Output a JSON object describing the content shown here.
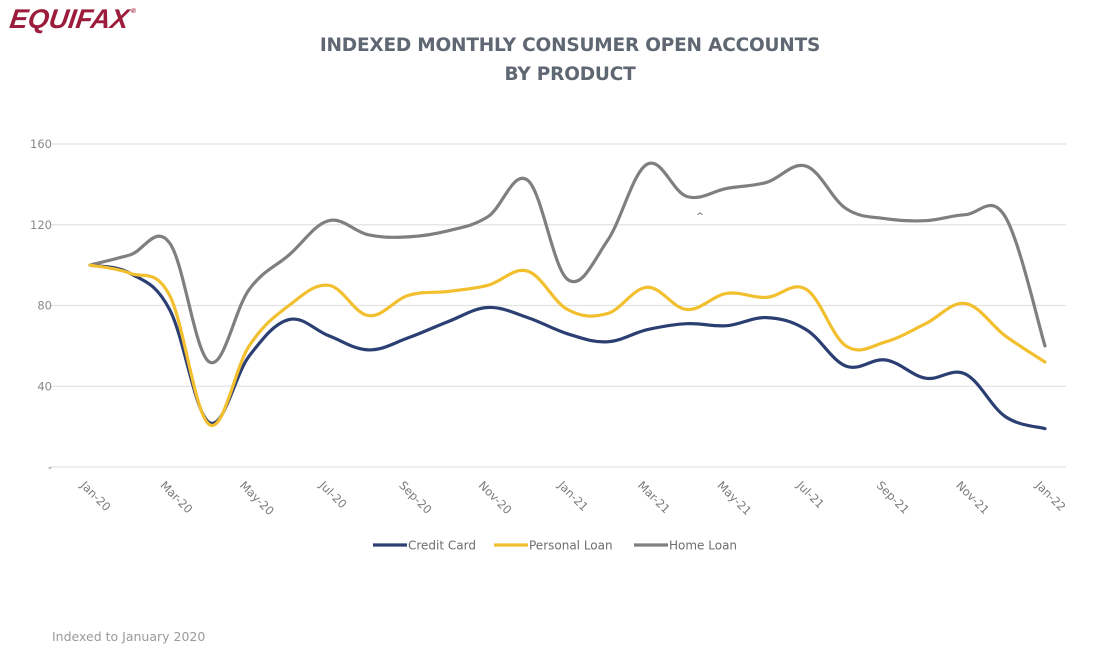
{
  "brand": {
    "logo_text": "EQUIFAX",
    "logo_mark": "®",
    "color": "#9c1c3c"
  },
  "footnote": "Indexed to January 2020",
  "chart_data": {
    "type": "line",
    "title_lines": [
      "INDEXED MONTHLY CONSUMER OPEN ACCOUNTS",
      "BY PRODUCT"
    ],
    "xlabel": "",
    "ylabel": "",
    "ylim": [
      0,
      160
    ],
    "yticks": [
      0,
      40,
      80,
      120,
      160
    ],
    "ytick_labels": [
      "-",
      "40",
      "80",
      "120",
      "160"
    ],
    "grid": true,
    "legend_position": "bottom",
    "x": [
      "Jan-20",
      "Feb-20",
      "Mar-20",
      "Apr-20",
      "May-20",
      "Jun-20",
      "Jul-20",
      "Aug-20",
      "Sep-20",
      "Oct-20",
      "Nov-20",
      "Dec-20",
      "Jan-21",
      "Feb-21",
      "Mar-21",
      "Apr-21",
      "May-21",
      "Jun-21",
      "Jul-21",
      "Aug-21",
      "Sep-21",
      "Oct-21",
      "Nov-21",
      "Dec-21",
      "Jan-22"
    ],
    "xtick_labels": [
      "Jan-20",
      "Mar-20",
      "May-20",
      "Jul-20",
      "Sep-20",
      "Nov-20",
      "Jan-21",
      "Mar-21",
      "May-21",
      "Jul-21",
      "Sep-21",
      "Nov-21",
      "Jan-22"
    ],
    "series": [
      {
        "name": "Credit Card",
        "color": "#2b3f73",
        "values": [
          100,
          96,
          78,
          22,
          55,
          73,
          65,
          58,
          64,
          72,
          79,
          74,
          66,
          62,
          68,
          71,
          70,
          74,
          68,
          50,
          53,
          44,
          46,
          25,
          19
        ]
      },
      {
        "name": "Personal Loan",
        "color": "#f2bf2f",
        "values": [
          100,
          96,
          85,
          21,
          60,
          80,
          90,
          75,
          85,
          87,
          90,
          97,
          78,
          76,
          89,
          78,
          86,
          84,
          88,
          60,
          62,
          71,
          81,
          65,
          52
        ]
      },
      {
        "name": "Home Loan",
        "color": "#7f7f7f",
        "values": [
          100,
          105,
          111,
          52,
          88,
          105,
          122,
          115,
          114,
          117,
          124,
          142,
          93,
          112,
          150,
          134,
          138,
          141,
          149,
          128,
          123,
          122,
          125,
          124,
          60
        ]
      }
    ],
    "annotations": [
      "^"
    ]
  }
}
